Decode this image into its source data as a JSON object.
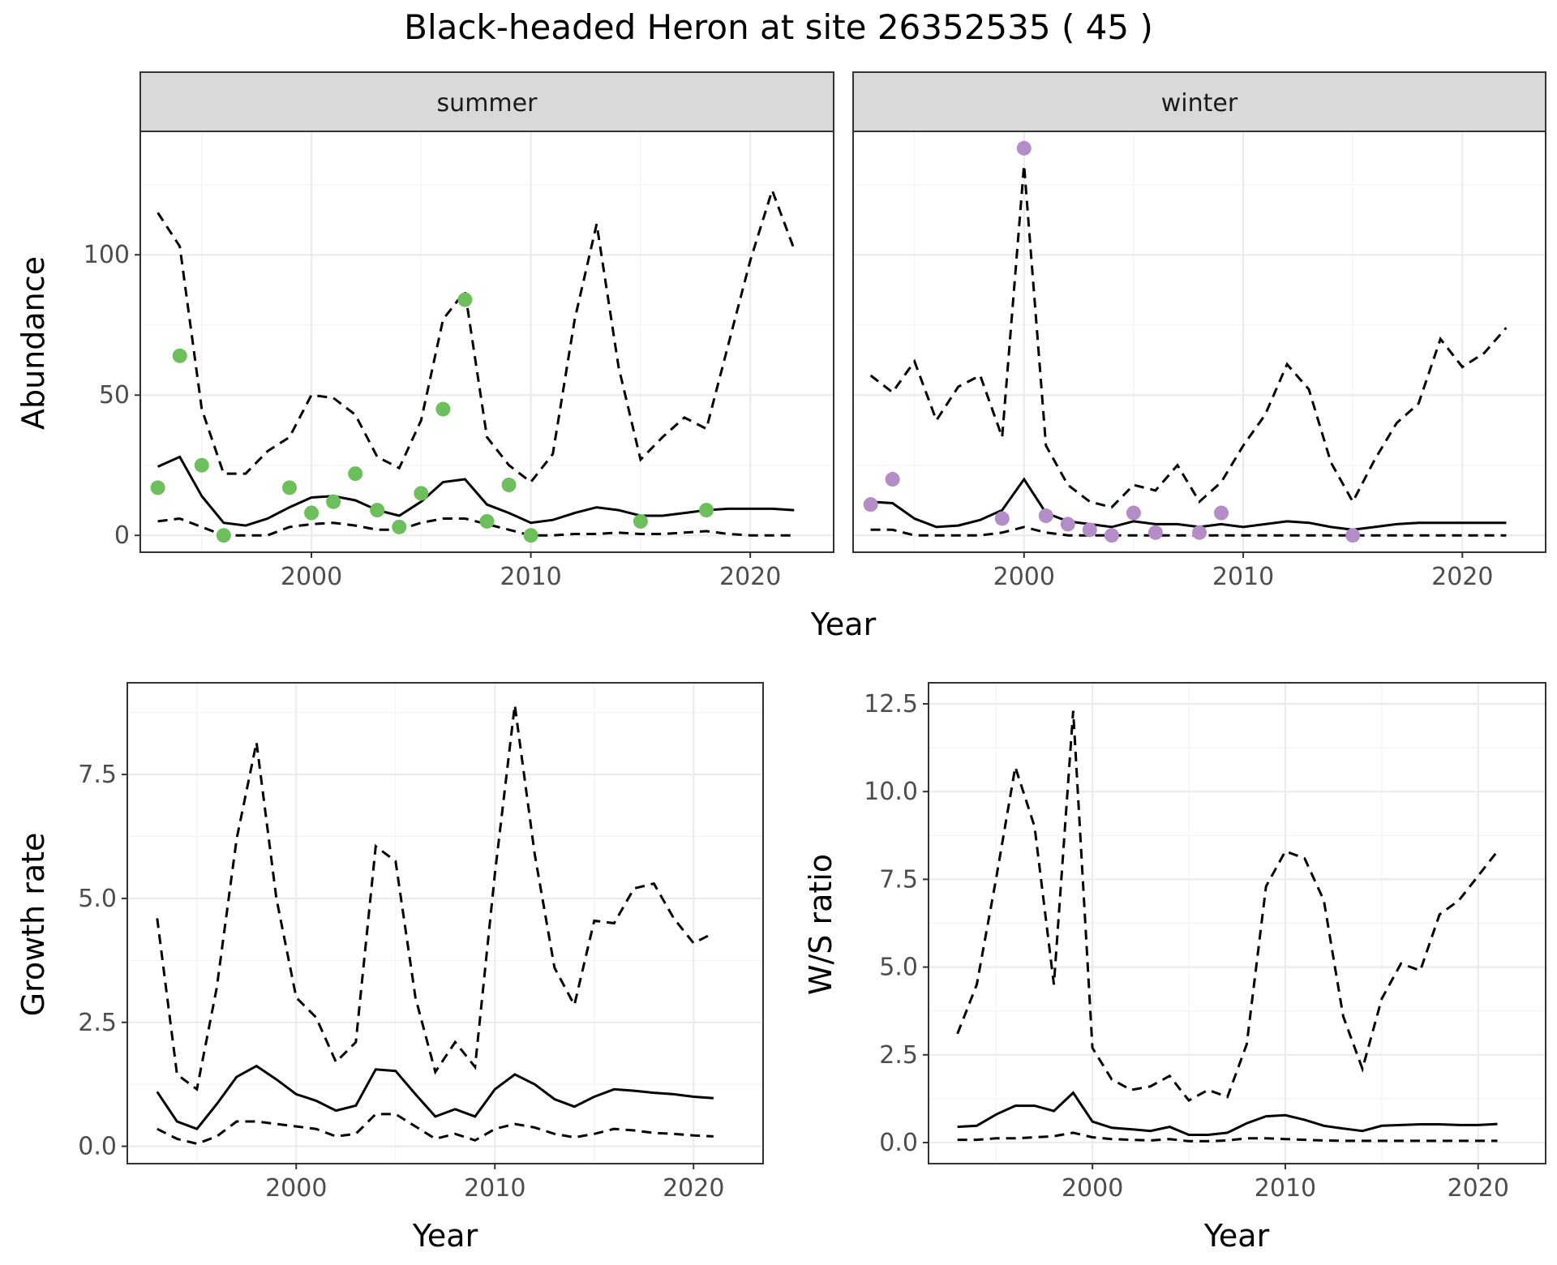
{
  "figure": {
    "title": "Black-headed Heron at site 26352535 ( 45 )"
  },
  "chart_data": [
    {
      "id": "abundance",
      "type": "line",
      "ylabel": "Abundance",
      "xlabel": "Year",
      "xlim": [
        1992.2,
        2023.8
      ],
      "ylim": [
        -6,
        144
      ],
      "xticks": [
        2000,
        2010,
        2020
      ],
      "yticks": [
        0,
        50,
        100
      ],
      "facets": [
        {
          "name": "summer",
          "point_color": "#6dbf5c",
          "x": [
            1993,
            1994,
            1995,
            1996,
            1997,
            1998,
            1999,
            2000,
            2001,
            2002,
            2003,
            2004,
            2005,
            2006,
            2007,
            2008,
            2009,
            2010,
            2011,
            2012,
            2013,
            2014,
            2015,
            2016,
            2017,
            2018,
            2019,
            2020,
            2021,
            2022
          ],
          "mean": [
            24.5,
            28,
            14,
            4.5,
            3.5,
            6,
            10,
            13.5,
            14,
            12.5,
            9,
            7,
            12,
            19,
            20,
            11,
            8,
            4.5,
            5.5,
            8,
            10,
            9,
            7,
            7,
            8,
            9,
            9.5,
            9.5,
            9.5,
            9
          ],
          "lower": [
            5,
            6,
            3,
            0,
            0,
            0,
            3,
            4,
            4.5,
            3.5,
            2,
            2,
            4.5,
            6,
            6,
            4,
            2,
            0,
            0,
            0.5,
            0.5,
            1,
            0.5,
            0.5,
            1,
            1.5,
            0.5,
            0,
            0,
            0
          ],
          "upper": [
            115,
            103,
            45,
            22,
            22,
            30,
            35,
            50,
            49,
            43,
            28,
            24,
            41,
            77,
            87,
            35,
            25,
            19,
            29,
            77,
            111,
            60,
            27,
            35,
            42,
            38,
            68,
            98,
            123,
            102
          ],
          "obs_x": [
            1993,
            1994,
            1995,
            1996,
            1999,
            2000,
            2001,
            2002,
            2003,
            2004,
            2005,
            2006,
            2007,
            2008,
            2009,
            2010,
            2015,
            2018
          ],
          "obs_y": [
            17,
            64,
            25,
            0,
            17,
            8,
            12,
            22,
            9,
            3,
            15,
            45,
            84,
            5,
            18,
            0,
            5,
            9
          ]
        },
        {
          "name": "winter",
          "point_color": "#b48cc8",
          "x": [
            1993,
            1994,
            1995,
            1996,
            1997,
            1998,
            1999,
            2000,
            2001,
            2002,
            2003,
            2004,
            2005,
            2006,
            2007,
            2008,
            2009,
            2010,
            2011,
            2012,
            2013,
            2014,
            2015,
            2016,
            2017,
            2018,
            2019,
            2020,
            2021,
            2022
          ],
          "mean": [
            12,
            11.5,
            6,
            3,
            3.5,
            5.5,
            9,
            20,
            8,
            5,
            4,
            3,
            5,
            4,
            4,
            3,
            4,
            3,
            4,
            5,
            4.5,
            3,
            2,
            3,
            4,
            4.5,
            4.5,
            4.5,
            4.5,
            4.5
          ],
          "lower": [
            2,
            2,
            0,
            0,
            0,
            0,
            1,
            3,
            1,
            0,
            0,
            0,
            0,
            0,
            0,
            0,
            0,
            0,
            0,
            0,
            0,
            0,
            0,
            0,
            0,
            0,
            0,
            0,
            0,
            0
          ],
          "upper": [
            57,
            51,
            62,
            41,
            53,
            57,
            35,
            132,
            32,
            18,
            12,
            10,
            18,
            16,
            25,
            12,
            19,
            32,
            43,
            61,
            52,
            26,
            12,
            27,
            40,
            47,
            70,
            60,
            65,
            74
          ],
          "obs_x": [
            1993,
            1994,
            1999,
            2000,
            2001,
            2002,
            2003,
            2004,
            2005,
            2006,
            2008,
            2009,
            2015
          ],
          "obs_y": [
            11,
            20,
            6,
            138,
            7,
            4,
            2,
            0,
            8,
            1,
            1,
            8,
            0
          ]
        }
      ]
    },
    {
      "id": "growth",
      "type": "line",
      "ylabel": "Growth rate",
      "xlabel": "Year",
      "xlim": [
        1991.5,
        2023.5
      ],
      "ylim": [
        -0.35,
        9.35
      ],
      "xticks": [
        2000,
        2010,
        2020
      ],
      "yticks": [
        0.0,
        2.5,
        5.0,
        7.5
      ],
      "ytick_labels": [
        "0.0",
        "2.5",
        "5.0",
        "7.5"
      ],
      "x": [
        1993,
        1994,
        1995,
        1996,
        1997,
        1998,
        1999,
        2000,
        2001,
        2002,
        2003,
        2004,
        2005,
        2006,
        2007,
        2008,
        2009,
        2010,
        2011,
        2012,
        2013,
        2014,
        2015,
        2016,
        2017,
        2018,
        2019,
        2020,
        2021
      ],
      "mean": [
        1.1,
        0.5,
        0.35,
        0.85,
        1.4,
        1.62,
        1.35,
        1.05,
        0.92,
        0.72,
        0.82,
        1.55,
        1.52,
        1.05,
        0.6,
        0.75,
        0.6,
        1.15,
        1.45,
        1.25,
        0.95,
        0.8,
        1.0,
        1.15,
        1.12,
        1.08,
        1.05,
        1.0,
        0.97
      ],
      "lower": [
        0.35,
        0.15,
        0.05,
        0.2,
        0.5,
        0.5,
        0.45,
        0.4,
        0.35,
        0.2,
        0.25,
        0.65,
        0.65,
        0.4,
        0.15,
        0.25,
        0.12,
        0.35,
        0.45,
        0.38,
        0.25,
        0.18,
        0.25,
        0.35,
        0.32,
        0.27,
        0.25,
        0.22,
        0.2
      ],
      "upper": [
        4.6,
        1.45,
        1.15,
        3.2,
        6.2,
        8.15,
        5.0,
        3.0,
        2.6,
        1.7,
        2.1,
        6.05,
        5.75,
        3.0,
        1.5,
        2.1,
        1.6,
        5.5,
        8.9,
        5.9,
        3.6,
        2.85,
        4.55,
        4.5,
        5.2,
        5.3,
        4.6,
        4.1,
        4.3
      ]
    },
    {
      "id": "ws_ratio",
      "type": "line",
      "ylabel": "W/S ratio",
      "xlabel": "Year",
      "xlim": [
        1991.5,
        2023.5
      ],
      "ylim": [
        -0.6,
        13.1
      ],
      "xticks": [
        2000,
        2010,
        2020
      ],
      "yticks": [
        0.0,
        2.5,
        5.0,
        7.5,
        10.0,
        12.5
      ],
      "ytick_labels": [
        "0.0",
        "2.5",
        "5.0",
        "7.5",
        "10.0",
        "12.5"
      ],
      "x": [
        1993,
        1994,
        1995,
        1996,
        1997,
        1998,
        1999,
        2000,
        2001,
        2002,
        2003,
        2004,
        2005,
        2006,
        2007,
        2008,
        2009,
        2010,
        2011,
        2012,
        2013,
        2014,
        2015,
        2016,
        2017,
        2018,
        2019,
        2020,
        2021
      ],
      "mean": [
        0.45,
        0.48,
        0.8,
        1.05,
        1.05,
        0.9,
        1.42,
        0.6,
        0.42,
        0.38,
        0.33,
        0.45,
        0.22,
        0.22,
        0.28,
        0.55,
        0.75,
        0.78,
        0.65,
        0.48,
        0.4,
        0.33,
        0.48,
        0.5,
        0.52,
        0.52,
        0.5,
        0.5,
        0.53
      ],
      "lower": [
        0.08,
        0.08,
        0.12,
        0.12,
        0.15,
        0.18,
        0.28,
        0.15,
        0.1,
        0.08,
        0.06,
        0.1,
        0.04,
        0.04,
        0.06,
        0.12,
        0.12,
        0.1,
        0.08,
        0.06,
        0.05,
        0.05,
        0.05,
        0.05,
        0.05,
        0.05,
        0.05,
        0.05,
        0.05
      ],
      "upper": [
        3.1,
        4.5,
        7.5,
        10.7,
        9.0,
        4.5,
        12.3,
        2.7,
        1.8,
        1.5,
        1.6,
        1.9,
        1.2,
        1.5,
        1.3,
        2.8,
        7.3,
        8.3,
        8.1,
        6.9,
        3.6,
        2.1,
        4.1,
        5.1,
        4.9,
        6.5,
        6.9,
        7.6,
        8.3
      ]
    }
  ]
}
